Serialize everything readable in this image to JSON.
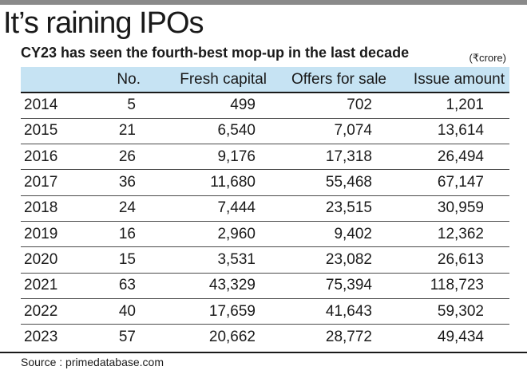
{
  "title": "It’s raining IPOs",
  "subtitle": "CY23 has seen the fourth-best mop-up in the last decade",
  "unit": "(₹crore)",
  "source": "Source : primedatabase.com",
  "chart_data": {
    "type": "table",
    "columns": [
      "",
      "No.",
      "Fresh capital",
      "Offers for sale",
      "Issue amount"
    ],
    "rows": [
      [
        "2014",
        "5",
        "499",
        "702",
        "1,201"
      ],
      [
        "2015",
        "21",
        "6,540",
        "7,074",
        "13,614"
      ],
      [
        "2016",
        "26",
        "9,176",
        "17,318",
        "26,494"
      ],
      [
        "2017",
        "36",
        "11,680",
        "55,468",
        "67,147"
      ],
      [
        "2018",
        "24",
        "7,444",
        "23,515",
        "30,959"
      ],
      [
        "2019",
        "16",
        "2,960",
        "9,402",
        "12,362"
      ],
      [
        "2020",
        "15",
        "3,531",
        "23,082",
        "26,613"
      ],
      [
        "2021",
        "63",
        "43,329",
        "75,394",
        "118,723"
      ],
      [
        "2022",
        "40",
        "17,659",
        "41,643",
        "59,302"
      ],
      [
        "2023",
        "57",
        "20,662",
        "28,772",
        "49,434"
      ]
    ]
  }
}
